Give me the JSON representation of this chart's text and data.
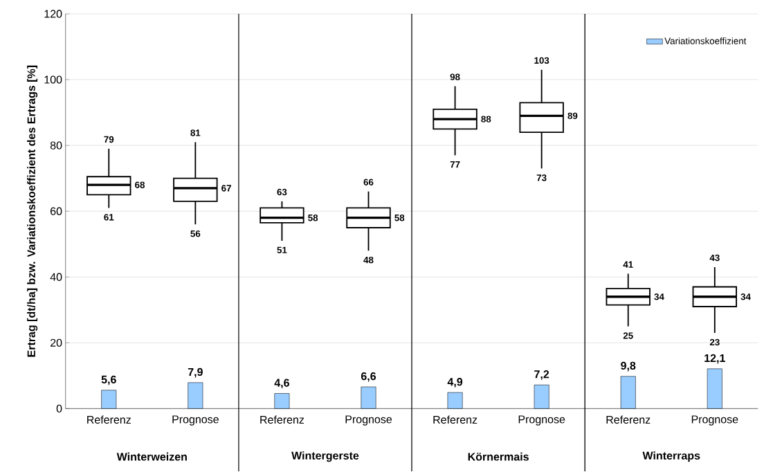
{
  "chart_data": {
    "type": "box",
    "ylabel": "Ertrag [dt/ha] bzw. Variationskoeffizient des Ertrags [%]",
    "categories": [
      "Referenz",
      "Prognose",
      "Referenz",
      "Prognose",
      "Referenz",
      "Prognose",
      "Referenz",
      "Prognose"
    ],
    "annotations": [
      "Winterweizen",
      "Wintergerste",
      "Körnermais",
      "Winterraps",
      {
        "text": "79",
        "y": 79
      },
      "68",
      {
        "text": "61",
        "y": 61
      },
      {
        "text": "81",
        "y": 81
      },
      "67",
      {
        "text": "56",
        "y": 56
      },
      {
        "text": "63",
        "y": 63
      },
      "58",
      {
        "text": "51",
        "y": 51
      },
      {
        "text": "66",
        "y": 66
      },
      "58",
      {
        "text": "48",
        "y": 48
      },
      {
        "text": "98",
        "y": 98
      },
      "88",
      {
        "text": "77",
        "y": 77
      },
      {
        "text": "103",
        "y": 103
      },
      "89",
      {
        "text": "73",
        "y": 73
      },
      {
        "text": "41",
        "y": 41
      },
      "34",
      {
        "text": "25",
        "y": 25
      },
      {
        "text": "43",
        "y": 43
      },
      "34",
      {
        "text": "23",
        "y": 23
      }
    ],
    "ylim": [
      0,
      120
    ],
    "yticks": [
      0,
      20,
      40,
      60,
      80,
      100,
      120
    ],
    "grid": "y",
    "legend": "top right",
    "series": [
      {
        "color": "#000000",
        "boxes": [
          {
            "low": 61,
            "q1": 65,
            "median": 68,
            "q3": 70.5,
            "high": 79
          },
          {
            "low": 56,
            "q1": 63,
            "median": 67,
            "q3": 70,
            "high": 81
          },
          {
            "low": 51,
            "q1": 56.5,
            "median": 58,
            "q3": 61,
            "high": 63
          },
          {
            "low": 48,
            "q1": 55,
            "median": 58,
            "q3": 61,
            "high": 66
          },
          {
            "low": 77,
            "q1": 85,
            "median": 88,
            "q3": 91,
            "high": 98
          },
          {
            "low": 73,
            "q1": 84,
            "median": 89,
            "q3": 93,
            "high": 103
          },
          {
            "low": 25,
            "q1": 31.5,
            "median": 34,
            "q3": 36.5,
            "high": 41
          },
          {
            "low": 23,
            "q1": 31,
            "median": 34,
            "q3": 37,
            "high": 43
          }
        ]
      },
      {
        "type": "bar",
        "name": "Variationskoeffizient",
        "color": "#99ccff",
        "values": [
          5.6,
          7.9,
          4.6,
          6.6,
          4.9,
          7.2,
          9.8,
          12.1
        ],
        "value_labels": [
          "5,6",
          "7,9",
          "4,6",
          "6,6",
          "4,9",
          "7,2",
          "9,8",
          "12,1"
        ]
      }
    ]
  }
}
